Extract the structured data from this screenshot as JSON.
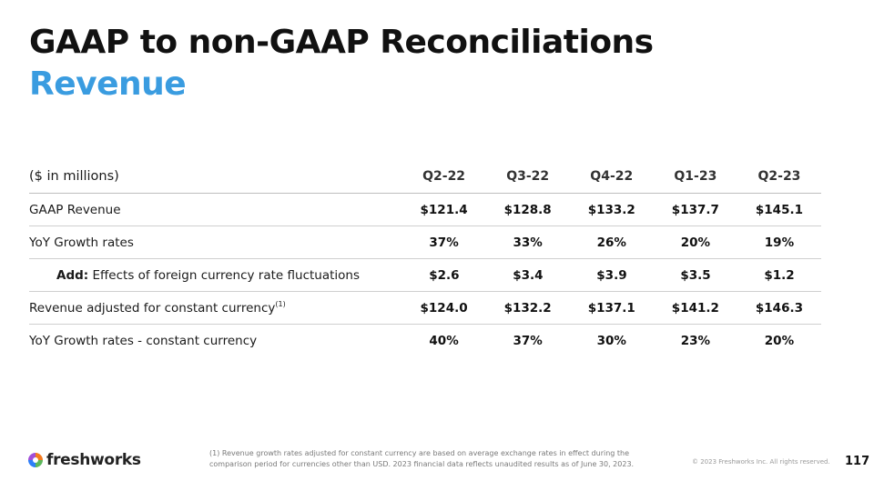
{
  "header": {
    "title": "GAAP to non-GAAP Reconciliations",
    "subtitle": "Revenue"
  },
  "table": {
    "units_label": "($ in millions)",
    "columns": [
      "Q2-22",
      "Q3-22",
      "Q4-22",
      "Q1-23",
      "Q2-23"
    ],
    "rows": [
      {
        "label": "GAAP Revenue",
        "values": [
          "$121.4",
          "$128.8",
          "$133.2",
          "$137.7",
          "$145.1"
        ]
      },
      {
        "label": "YoY Growth rates",
        "values": [
          "37%",
          "33%",
          "26%",
          "20%",
          "19%"
        ]
      },
      {
        "label_bold": "Add:",
        "label": " Effects of foreign currency rate fluctuations",
        "values": [
          "$2.6",
          "$3.4",
          "$3.9",
          "$3.5",
          "$1.2"
        ]
      },
      {
        "label": "Revenue adjusted for constant currency",
        "superscript": "(1)",
        "values": [
          "$124.0",
          "$132.2",
          "$137.1",
          "$141.2",
          "$146.3"
        ]
      },
      {
        "label": "YoY Growth rates - constant currency",
        "values": [
          "40%",
          "37%",
          "30%",
          "23%",
          "20%"
        ]
      }
    ]
  },
  "footer": {
    "logo_text": "freshworks",
    "footnote": "(1) Revenue growth rates adjusted for constant currency are based on average exchange rates in effect during the comparison period for currencies other than USD. 2023 financial data reflects unaudited results as of June 30, 2023.",
    "copyright": "© 2023 Freshworks Inc. All rights reserved.",
    "page_number": "117"
  },
  "colors": {
    "accent": "#3a9ce0",
    "title": "#111111",
    "logo_orange": "#f47b20",
    "logo_green": "#5cb85c",
    "logo_blue": "#2d7ff9",
    "logo_purple": "#a14fd8"
  }
}
